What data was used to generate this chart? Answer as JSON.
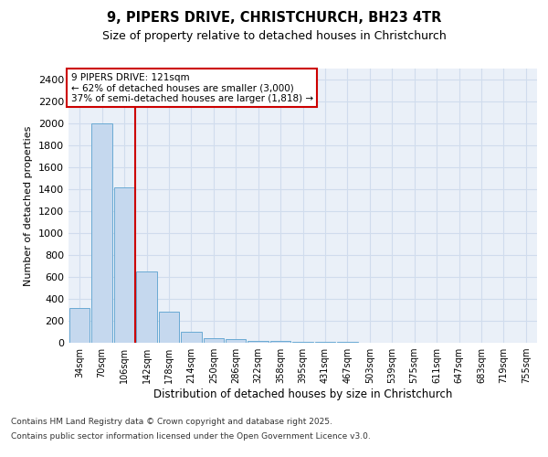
{
  "title_line1": "9, PIPERS DRIVE, CHRISTCHURCH, BH23 4TR",
  "title_line2": "Size of property relative to detached houses in Christchurch",
  "xlabel": "Distribution of detached houses by size in Christchurch",
  "ylabel": "Number of detached properties",
  "categories": [
    "34sqm",
    "70sqm",
    "106sqm",
    "142sqm",
    "178sqm",
    "214sqm",
    "250sqm",
    "286sqm",
    "322sqm",
    "358sqm",
    "395sqm",
    "431sqm",
    "467sqm",
    "503sqm",
    "539sqm",
    "575sqm",
    "611sqm",
    "647sqm",
    "683sqm",
    "719sqm",
    "755sqm"
  ],
  "values": [
    320,
    2000,
    1420,
    650,
    280,
    100,
    45,
    30,
    20,
    15,
    10,
    5,
    5,
    4,
    4,
    3,
    3,
    3,
    2,
    2,
    2
  ],
  "bar_color": "#c5d8ee",
  "bar_edge_color": "#6aaad4",
  "grid_color": "#d0dced",
  "background_color": "#eaf0f8",
  "vline_color": "#cc0000",
  "vline_pos": 2.5,
  "annotation_text": "9 PIPERS DRIVE: 121sqm\n← 62% of detached houses are smaller (3,000)\n37% of semi-detached houses are larger (1,818) →",
  "annotation_box_color": "#cc0000",
  "ylim": [
    0,
    2500
  ],
  "yticks": [
    0,
    200,
    400,
    600,
    800,
    1000,
    1200,
    1400,
    1600,
    1800,
    2000,
    2200,
    2400
  ],
  "footer_line1": "Contains HM Land Registry data © Crown copyright and database right 2025.",
  "footer_line2": "Contains public sector information licensed under the Open Government Licence v3.0."
}
